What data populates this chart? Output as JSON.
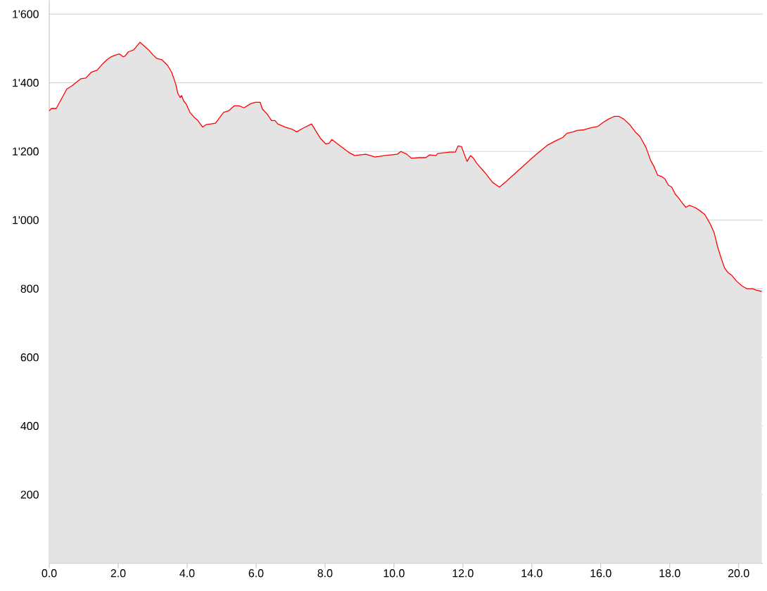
{
  "chart_data": {
    "type": "area",
    "x": [
      0,
      0.06,
      0.2,
      0.51,
      0.67,
      0.92,
      1.06,
      1.22,
      1.39,
      1.53,
      1.67,
      1.8,
      1.96,
      2.04,
      2.14,
      2.2,
      2.29,
      2.45,
      2.63,
      2.9,
      3.02,
      3.12,
      3.27,
      3.43,
      3.55,
      3.67,
      3.73,
      3.8,
      3.84,
      3.9,
      3.98,
      4.08,
      4.2,
      4.31,
      4.45,
      4.55,
      4.69,
      4.82,
      5.06,
      5.2,
      5.37,
      5.51,
      5.65,
      5.84,
      5.98,
      6.12,
      6.18,
      6.33,
      6.45,
      6.55,
      6.63,
      6.84,
      7.04,
      7.18,
      7.35,
      7.61,
      7.86,
      8.02,
      8.12,
      8.2,
      8.47,
      8.71,
      8.86,
      9.18,
      9.45,
      9.73,
      10.1,
      10.2,
      10.37,
      10.51,
      10.73,
      10.92,
      11.04,
      11.22,
      11.27,
      11.63,
      11.78,
      11.86,
      11.96,
      12.04,
      12.12,
      12.22,
      12.31,
      12.39,
      12.65,
      12.86,
      13.06,
      13.27,
      13.57,
      13.88,
      14.18,
      14.45,
      14.69,
      14.9,
      15.02,
      15.2,
      15.31,
      15.51,
      15.71,
      15.92,
      16.06,
      16.22,
      16.39,
      16.53,
      16.67,
      16.84,
      17.0,
      17.14,
      17.31,
      17.45,
      17.55,
      17.65,
      17.76,
      17.86,
      17.96,
      18.06,
      18.16,
      18.27,
      18.37,
      18.47,
      18.57,
      18.73,
      18.88,
      19.02,
      19.18,
      19.29,
      19.39,
      19.49,
      19.59,
      19.69,
      19.8,
      19.94,
      20.1,
      20.24,
      20.41,
      20.51,
      20.67
    ],
    "series": [
      {
        "color": "#ff0000",
        "values": [
          1318,
          1325,
          1325,
          1382,
          1392,
          1412,
          1414,
          1431,
          1437,
          1453,
          1467,
          1476,
          1482,
          1484,
          1476,
          1478,
          1490,
          1496,
          1518,
          1494,
          1480,
          1471,
          1467,
          1451,
          1431,
          1396,
          1369,
          1357,
          1363,
          1347,
          1337,
          1314,
          1300,
          1290,
          1271,
          1278,
          1280,
          1282,
          1314,
          1318,
          1333,
          1333,
          1327,
          1339,
          1343,
          1343,
          1324,
          1308,
          1290,
          1290,
          1280,
          1271,
          1265,
          1257,
          1267,
          1280,
          1239,
          1222,
          1224,
          1235,
          1214,
          1196,
          1188,
          1192,
          1184,
          1188,
          1192,
          1200,
          1192,
          1180,
          1182,
          1182,
          1190,
          1188,
          1194,
          1198,
          1198,
          1216,
          1214,
          1192,
          1171,
          1188,
          1180,
          1167,
          1137,
          1110,
          1096,
          1114,
          1141,
          1169,
          1196,
          1218,
          1231,
          1241,
          1253,
          1257,
          1261,
          1263,
          1269,
          1273,
          1284,
          1294,
          1302,
          1302,
          1294,
          1278,
          1257,
          1243,
          1212,
          1173,
          1155,
          1131,
          1127,
          1120,
          1102,
          1096,
          1076,
          1063,
          1049,
          1037,
          1043,
          1037,
          1027,
          1016,
          988,
          963,
          922,
          890,
          861,
          847,
          839,
          822,
          808,
          800,
          800,
          796,
          792
        ]
      }
    ],
    "xlim": [
      0,
      20.7
    ],
    "ylim": [
      0,
      1640
    ],
    "xticks": [
      {
        "value": 0,
        "label": "0.0"
      },
      {
        "value": 2,
        "label": "2.0"
      },
      {
        "value": 4,
        "label": "4.0"
      },
      {
        "value": 6,
        "label": "6.0"
      },
      {
        "value": 8,
        "label": "8.0"
      },
      {
        "value": 10,
        "label": "10.0"
      },
      {
        "value": 12,
        "label": "12.0"
      },
      {
        "value": 14,
        "label": "14.0"
      },
      {
        "value": 16,
        "label": "16.0"
      },
      {
        "value": 18,
        "label": "18.0"
      },
      {
        "value": 20,
        "label": "20.0"
      }
    ],
    "yticks": [
      200,
      400,
      600,
      800,
      {
        "value": 1000,
        "label": "1'000"
      },
      {
        "value": 1200,
        "label": "1'200"
      },
      {
        "value": 1400,
        "label": "1'400"
      },
      {
        "value": 1600,
        "label": "1'600"
      }
    ],
    "grid": "y"
  }
}
